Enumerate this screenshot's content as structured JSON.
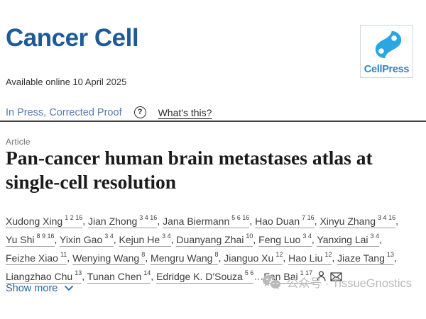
{
  "header": {
    "journal_title": "Cancer Cell",
    "publisher_logo_text": "CellPress"
  },
  "meta": {
    "available_online": "Available online 10 April 2025",
    "in_press_label": "In Press, Corrected Proof",
    "help_icon": "?",
    "whats_this_label": "What's this?"
  },
  "article": {
    "type_label": "Article",
    "title": "Pan-cancer human brain metastases atlas at single-cell resolution",
    "authors": [
      {
        "name": "Xudong Xing",
        "sup": "1 2 16"
      },
      {
        "name": "Jian Zhong",
        "sup": "3 4 16"
      },
      {
        "name": "Jana Biermann",
        "sup": "5 6 16"
      },
      {
        "name": "Hao Duan",
        "sup": "7 16"
      },
      {
        "name": "Xinyu Zhang",
        "sup": "3 4 16"
      },
      {
        "name": "Yu Shi",
        "sup": "8 9 16"
      },
      {
        "name": "Yixin Gao",
        "sup": "3 4"
      },
      {
        "name": "Kejun He",
        "sup": "3 4"
      },
      {
        "name": "Duanyang Zhai",
        "sup": "10"
      },
      {
        "name": "Feng Luo",
        "sup": "3 4"
      },
      {
        "name": "Yanxing Lai",
        "sup": "3 4"
      },
      {
        "name": "Feizhe Xiao",
        "sup": "11"
      },
      {
        "name": "Wenying Wang",
        "sup": "8"
      },
      {
        "name": "Mengru Wang",
        "sup": "8"
      },
      {
        "name": "Jianguo Xu",
        "sup": "12"
      },
      {
        "name": "Hao Liu",
        "sup": "12"
      },
      {
        "name": "Jiaze Tang",
        "sup": "13"
      },
      {
        "name": "Liangzhao Chu",
        "sup": "13"
      },
      {
        "name": "Tunan Chen",
        "sup": "14"
      },
      {
        "name": "Edridge K. D'Souza",
        "sup": "5 6",
        "sep": ""
      },
      {
        "name": "Fan Bai",
        "sup": "1 17",
        "pre": "…",
        "sep": "",
        "corresponding": true
      }
    ],
    "show_more_label": "Show more"
  },
  "watermark": {
    "text": "公众号 · TissueGnostics"
  },
  "colors": {
    "journal_logo_blue": "#1d5a96",
    "cellpress_blue": "#2aa6e0",
    "cellpress_text_blue": "#2e82c4",
    "in_press_blue": "#527cb4",
    "link_blue": "#2368a9",
    "title_black": "#1b1b1b",
    "author_gray": "#3d3d3d",
    "watermark_gray": "#b9b9b9",
    "rule_dark": "#404040"
  }
}
